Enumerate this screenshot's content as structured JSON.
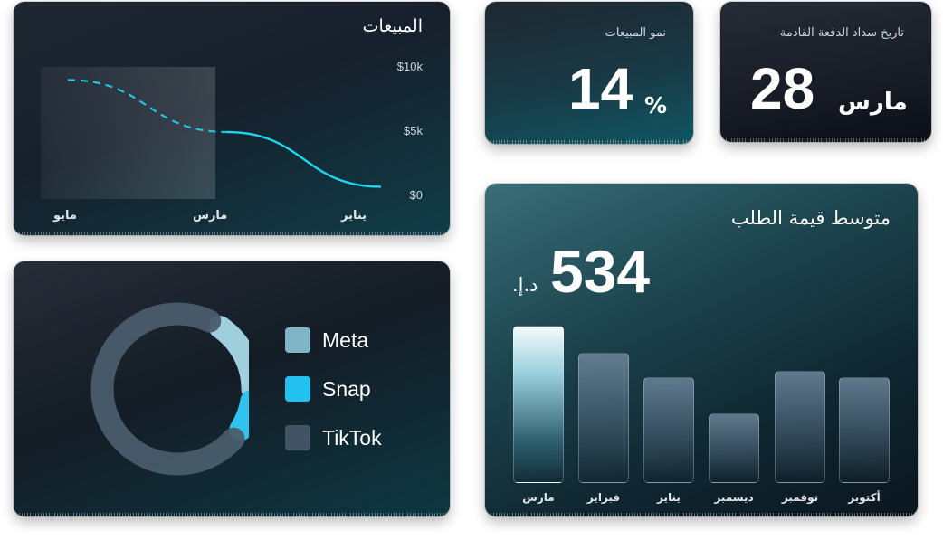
{
  "sales_card": {
    "title": "المبيعات",
    "y_ticks": [
      "$10k",
      "$5k",
      "$0"
    ],
    "x_ticks": [
      "مايو",
      "مارس",
      "يناير"
    ]
  },
  "growth_card": {
    "label": "نمو المبيعات",
    "value": "14",
    "unit": "%"
  },
  "payment_card": {
    "label": "تاريخ سداد الدفعة القادمة",
    "day": "28",
    "month": "مارس"
  },
  "channels_card": {
    "legend": [
      {
        "label": "Meta",
        "color": "#7fb5c4"
      },
      {
        "label": "Snap",
        "color": "#23c0f0"
      },
      {
        "label": "TikTok",
        "color": "#435366"
      }
    ]
  },
  "aov_card": {
    "title": "متوسط قيمة الطلب",
    "value": "534",
    "currency": "د.إ.",
    "months": [
      "مارس",
      "فبراير",
      "يناير",
      "ديسمبر",
      "نوفمبر",
      "أكتوبر"
    ]
  },
  "chart_data": [
    {
      "type": "line",
      "title": "المبيعات",
      "x": [
        "مايو",
        "مارس",
        "يناير"
      ],
      "series": [
        {
          "values": [
            9000,
            5000,
            800
          ]
        }
      ],
      "ylim": [
        0,
        10000
      ],
      "y_ticks": [
        "$0",
        "$5k",
        "$10k"
      ],
      "note_style": "dashed segment for projected portion (مايو to مارس), solid for actual"
    },
    {
      "type": "pie",
      "categories": [
        "Meta",
        "Snap",
        "TikTok"
      ],
      "values": [
        18,
        9,
        73
      ],
      "colors": [
        "#7fb5c4",
        "#23c0f0",
        "#435366"
      ]
    },
    {
      "type": "bar",
      "title": "متوسط قيمة الطلب",
      "categories": [
        "مارس",
        "فبراير",
        "يناير",
        "ديسمبر",
        "نوفمبر",
        "أكتوبر"
      ],
      "values": [
        100,
        83,
        67,
        44,
        71,
        67
      ],
      "ylim": [
        0,
        100
      ]
    }
  ]
}
